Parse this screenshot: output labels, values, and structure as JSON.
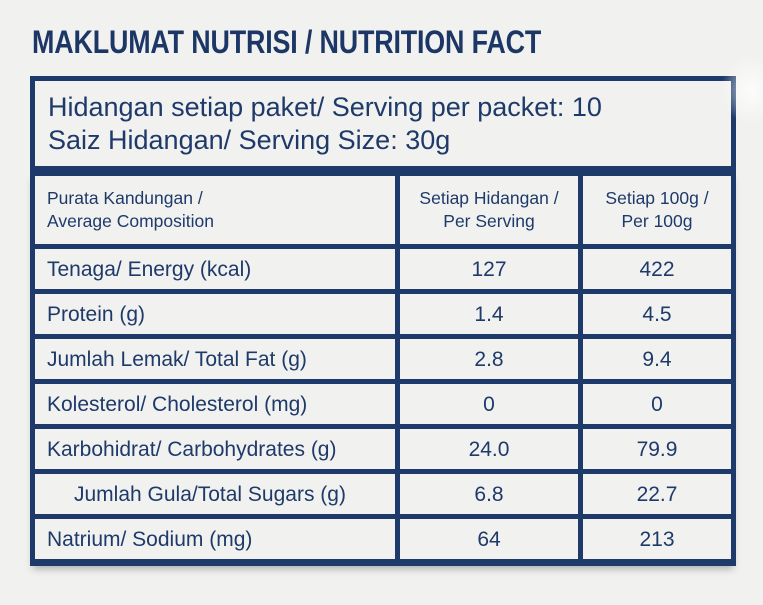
{
  "colors": {
    "navy": "#1e3a6a",
    "background": "#f1f1ef"
  },
  "title": "MAKLUMAT NUTRISI / NUTRITION FACT",
  "serving_info": {
    "line1": "Hidangan setiap paket/ Serving per packet: 10",
    "line2": "Saiz Hidangan/ Serving Size: 30g"
  },
  "table": {
    "headers": {
      "composition": {
        "line1": "Purata Kandungan /",
        "line2": "Average Composition"
      },
      "per_serving": {
        "line1": "Setiap Hidangan /",
        "line2": "Per Serving"
      },
      "per_100g": {
        "line1": "Setiap 100g /",
        "line2": "Per 100g"
      }
    },
    "rows": [
      {
        "label": "Tenaga/ Energy (kcal)",
        "per_serving": "127",
        "per_100g": "422"
      },
      {
        "label": "Protein (g)",
        "per_serving": "1.4",
        "per_100g": "4.5"
      },
      {
        "label": "Jumlah Lemak/ Total Fat (g)",
        "per_serving": "2.8",
        "per_100g": "9.4"
      },
      {
        "label": "Kolesterol/ Cholesterol (mg)",
        "per_serving": "0",
        "per_100g": "0"
      },
      {
        "label": "Karbohidrat/ Carbohydrates (g)",
        "per_serving": "24.0",
        "per_100g": "79.9"
      },
      {
        "label": "Jumlah Gula/Total Sugars (g)",
        "per_serving": "6.8",
        "per_100g": "22.7"
      },
      {
        "label": "Natrium/ Sodium (mg)",
        "per_serving": "64",
        "per_100g": "213"
      }
    ]
  }
}
